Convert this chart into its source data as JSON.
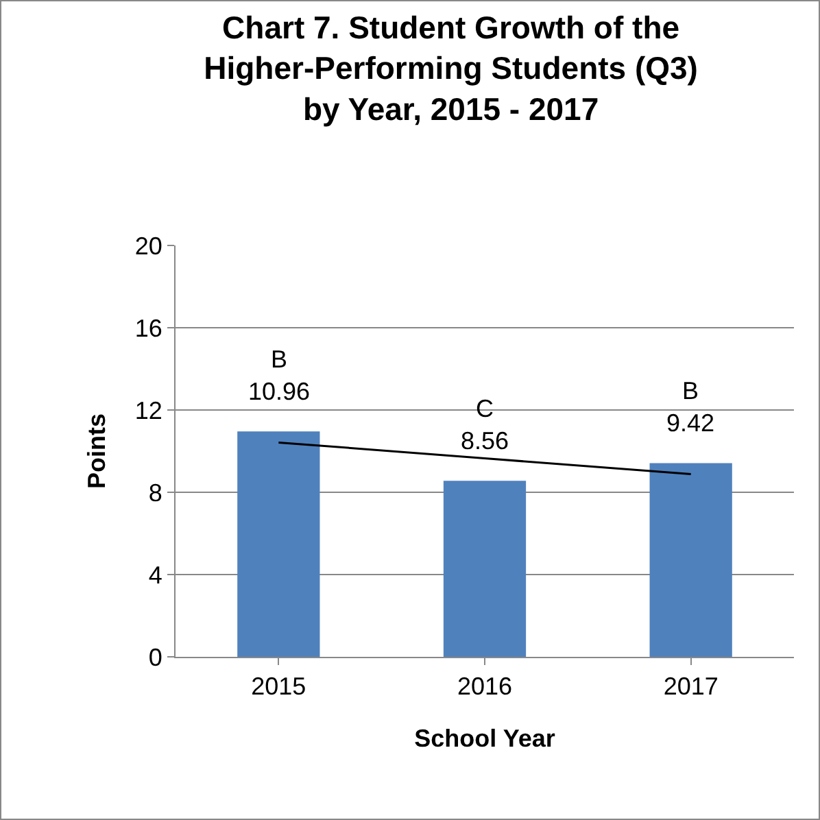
{
  "chart_data": {
    "type": "bar",
    "title": "Chart 7. Student Growth of the\nHigher-Performing Students (Q3)\nby Year, 2015 - 2017",
    "xlabel": "School Year",
    "ylabel": "Points",
    "categories": [
      "2015",
      "2016",
      "2017"
    ],
    "series": [
      {
        "color": "#4f81bd",
        "values": [
          10.96,
          8.56,
          9.42
        ],
        "value_labels": [
          "B\n10.96",
          "C\n8.56",
          "B\n9.42"
        ]
      },
      {
        "type": "line",
        "color": "#000000",
        "values": [
          10.42,
          9.65,
          8.88
        ],
        "marker": "none",
        "line_style": "solid"
      }
    ],
    "ylim": [
      0,
      20
    ],
    "yticks": [
      0,
      4,
      8,
      12,
      16,
      20
    ],
    "grid": "y"
  }
}
